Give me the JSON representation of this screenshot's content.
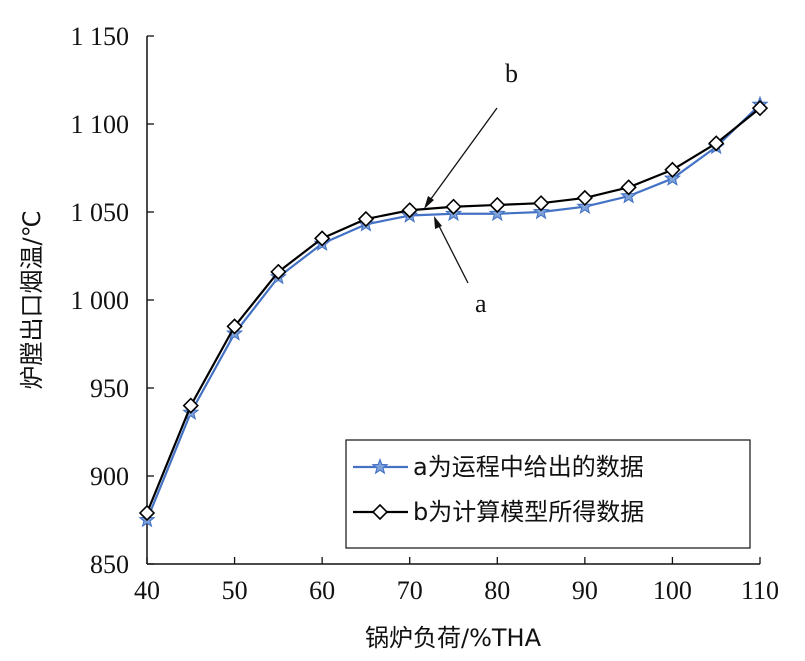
{
  "chart_data": {
    "type": "line",
    "xlabel": "锅炉负荷/%THA",
    "ylabel": "炉膛出口烟温/℃",
    "xlim": [
      40,
      110
    ],
    "ylim": [
      850,
      1150
    ],
    "xticks": [
      40,
      50,
      60,
      70,
      80,
      90,
      100,
      110
    ],
    "yticks": [
      850,
      900,
      950,
      1000,
      1050,
      1100,
      1150
    ],
    "xtick_labels": [
      "40",
      "50",
      "60",
      "70",
      "80",
      "90",
      "100",
      "110"
    ],
    "ytick_labels": [
      "850",
      "900",
      "950",
      "1 000",
      "1 050",
      "1 100",
      "1 150"
    ],
    "x": [
      40,
      45,
      50,
      55,
      60,
      65,
      70,
      75,
      80,
      85,
      90,
      95,
      100,
      105,
      110
    ],
    "series": [
      {
        "name": "a为运程中给出的数据",
        "marker": "star",
        "color": "#4472c4",
        "values": [
          875,
          936,
          981,
          1013,
          1032,
          1043,
          1048,
          1049,
          1049,
          1050,
          1053,
          1059,
          1069,
          1087,
          1111
        ]
      },
      {
        "name": "b为计算模型所得数据",
        "marker": "diamond",
        "color": "#000000",
        "values": [
          879,
          940,
          985,
          1016,
          1035,
          1046,
          1051,
          1053,
          1054,
          1055,
          1058,
          1064,
          1074,
          1089,
          1109
        ]
      }
    ],
    "annotations": [
      {
        "text": "b",
        "series": "b"
      },
      {
        "text": "a",
        "series": "a"
      }
    ],
    "legend_position": "bottom-right",
    "grid": false
  }
}
